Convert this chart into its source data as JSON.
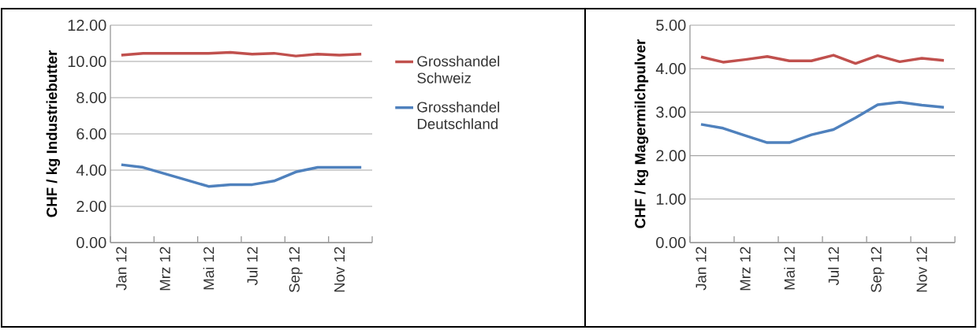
{
  "chart_data": [
    {
      "type": "line",
      "ylabel": "CHF / kg Industriebutter",
      "categories": [
        "Jan 12",
        null,
        "Mrz 12",
        null,
        "Mai 12",
        null,
        "Jul 12",
        null,
        "Sep 12",
        null,
        "Nov 12",
        null
      ],
      "series": [
        {
          "name": "Grosshandel Schweiz",
          "color": "#c0504d",
          "values": [
            10.35,
            10.45,
            10.45,
            10.45,
            10.45,
            10.5,
            10.4,
            10.45,
            10.3,
            10.4,
            10.35,
            10.4
          ]
        },
        {
          "name": "Grosshandel Deutschland",
          "color": "#4f81bd",
          "values": [
            4.3,
            4.15,
            3.8,
            3.45,
            3.1,
            3.2,
            3.2,
            3.4,
            3.9,
            4.15,
            4.15,
            4.15
          ]
        }
      ],
      "ylim": [
        0,
        12
      ],
      "yticks": [
        {
          "value": 0,
          "label": "0.00"
        },
        {
          "value": 2,
          "label": "2.00"
        },
        {
          "value": 4,
          "label": "4.00"
        },
        {
          "value": 6,
          "label": "6.00"
        },
        {
          "value": 8,
          "label": "8.00"
        },
        {
          "value": 10,
          "label": "10.00"
        },
        {
          "value": 12,
          "label": "12.00"
        }
      ],
      "grid": "y",
      "legend": "right",
      "marker": "none"
    },
    {
      "type": "line",
      "ylabel": "CHF / kg Magermilchpulver",
      "categories": [
        "Jan 12",
        null,
        "Mrz 12",
        null,
        "Mai 12",
        null,
        "Jul 12",
        null,
        "Sep 12",
        null,
        "Nov 12",
        null
      ],
      "series": [
        {
          "color": "#c0504d",
          "values": [
            4.27,
            4.15,
            4.21,
            4.28,
            4.18,
            4.18,
            4.31,
            4.12,
            4.3,
            4.16,
            4.24,
            4.19
          ]
        },
        {
          "color": "#4f81bd",
          "values": [
            2.72,
            2.63,
            2.46,
            2.3,
            2.3,
            2.48,
            2.6,
            2.87,
            3.17,
            3.23,
            3.16,
            3.11
          ]
        }
      ],
      "ylim": [
        0,
        5
      ],
      "yticks": [
        {
          "value": 0,
          "label": "0.00"
        },
        {
          "value": 1,
          "label": "1.00"
        },
        {
          "value": 2,
          "label": "2.00"
        },
        {
          "value": 3,
          "label": "3.00"
        },
        {
          "value": 4,
          "label": "4.00"
        },
        {
          "value": 5,
          "label": "5.00"
        }
      ],
      "grid": "y",
      "marker": "none"
    }
  ]
}
